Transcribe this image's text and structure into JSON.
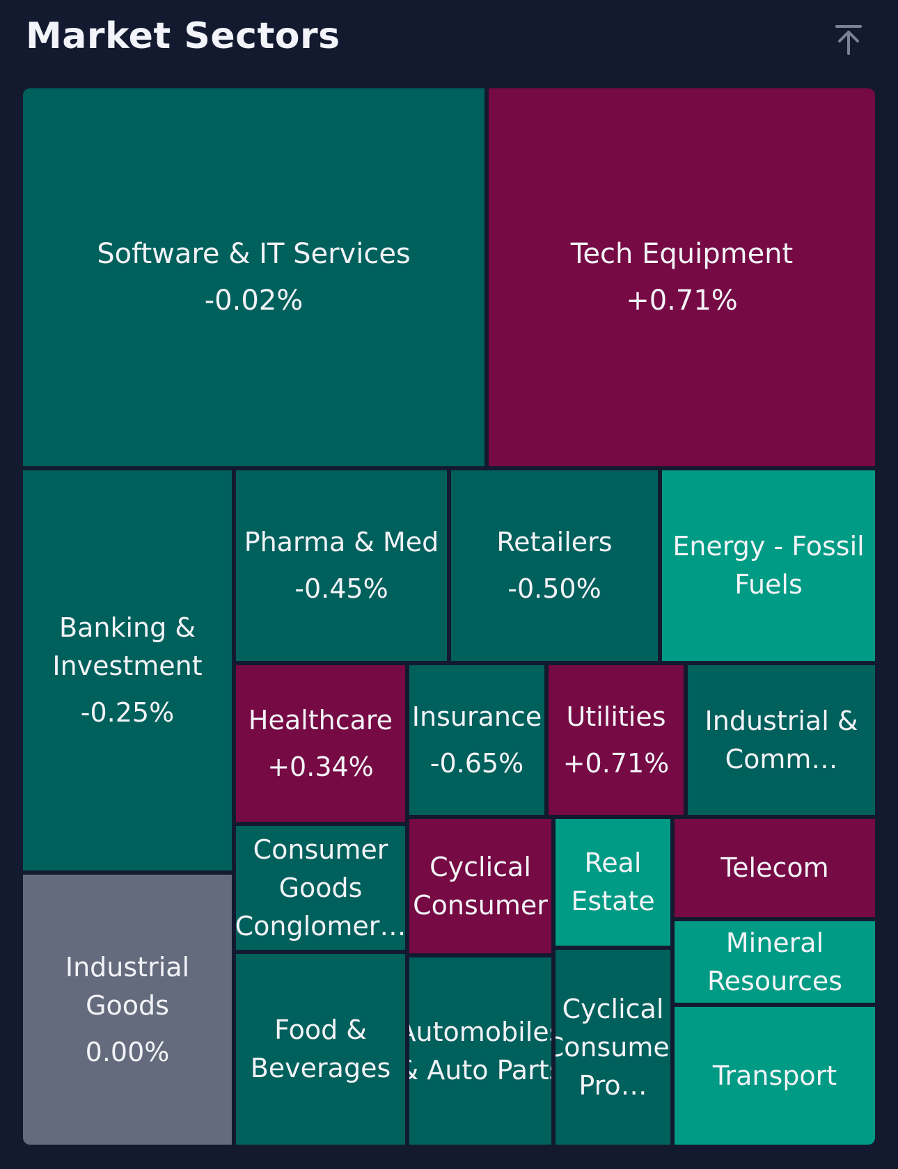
{
  "header": {
    "title": "Market Sectors"
  },
  "colors": {
    "background": "#131a30",
    "negative": "#00605c",
    "negative_strong": "#009b84",
    "positive": "#760a44",
    "neutral": "#646b7c"
  },
  "chart_data": {
    "type": "treemap",
    "tiles": [
      {
        "name": "Software & IT Services",
        "change": "-0.02%",
        "value": -0.02,
        "color": "#00605c"
      },
      {
        "name": "Tech Equipment",
        "change": "+0.71%",
        "value": 0.71,
        "color": "#760a44"
      },
      {
        "name": "Banking & Investment",
        "change": "-0.25%",
        "value": -0.25,
        "color": "#00605c"
      },
      {
        "name": "Pharma & Med",
        "change": "-0.45%",
        "value": -0.45,
        "color": "#00605c"
      },
      {
        "name": "Retailers",
        "change": "-0.50%",
        "value": -0.5,
        "color": "#00605c"
      },
      {
        "name": "Energy - Fossil Fuels",
        "change": "",
        "color": "#009b84"
      },
      {
        "name": "Healthcare",
        "change": "+0.34%",
        "value": 0.34,
        "color": "#760a44"
      },
      {
        "name": "Insurance",
        "change": "-0.65%",
        "value": -0.65,
        "color": "#00605c"
      },
      {
        "name": "Utilities",
        "change": "+0.71%",
        "value": 0.71,
        "color": "#760a44"
      },
      {
        "name": "Industrial & Comm…",
        "change": "",
        "color": "#00605c"
      },
      {
        "name": "Industrial Goods",
        "change": "0.00%",
        "value": 0.0,
        "color": "#646b7c"
      },
      {
        "name": "Consumer Goods Conglomer…",
        "change": "",
        "color": "#00605c"
      },
      {
        "name": "Cyclical Consumer",
        "change": "",
        "color": "#760a44"
      },
      {
        "name": "Real Estate",
        "change": "",
        "color": "#009b84"
      },
      {
        "name": "Telecom",
        "change": "",
        "color": "#760a44"
      },
      {
        "name": "Mineral Resources",
        "change": "",
        "color": "#009b84"
      },
      {
        "name": "Food & Beverages",
        "change": "",
        "color": "#00605c"
      },
      {
        "name": "Automobiles & Auto Parts",
        "change": "",
        "color": "#00605c"
      },
      {
        "name": "Cyclical Consumer Pro…",
        "change": "",
        "color": "#00605c"
      },
      {
        "name": "Transport",
        "change": "",
        "color": "#009b84"
      }
    ]
  }
}
